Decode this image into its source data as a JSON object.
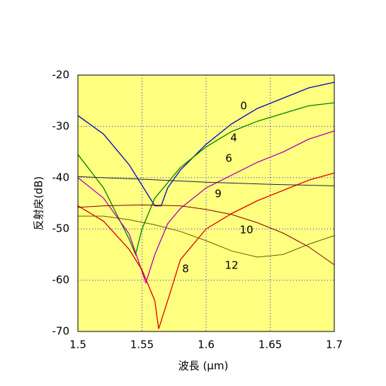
{
  "chart_data": {
    "type": "line",
    "xlabel": "波長 (μm)",
    "ylabel": "反射戻(dB)",
    "xlim": [
      1.5,
      1.7
    ],
    "ylim": [
      -70,
      -20
    ],
    "xticks": [
      1.5,
      1.55,
      1.6,
      1.65,
      1.7
    ],
    "yticks": [
      -70,
      -60,
      -50,
      -40,
      -30,
      -20
    ],
    "grid": true,
    "background": "#ffff80",
    "series": [
      {
        "name": "0",
        "color": "#0000c0",
        "x": [
          1.5,
          1.52,
          1.54,
          1.55,
          1.56,
          1.565,
          1.57,
          1.58,
          1.6,
          1.62,
          1.64,
          1.66,
          1.68,
          1.7
        ],
        "values": [
          -27.9,
          -31.5,
          -37.5,
          -41.5,
          -45.5,
          -45.5,
          -42,
          -38.5,
          -33.5,
          -29.5,
          -26.5,
          -24.5,
          -22.5,
          -21.4
        ]
      },
      {
        "name": "4",
        "color": "#008000",
        "x": [
          1.5,
          1.52,
          1.53,
          1.54,
          1.545,
          1.55,
          1.56,
          1.58,
          1.6,
          1.62,
          1.64,
          1.66,
          1.68,
          1.7
        ],
        "values": [
          -35.5,
          -42,
          -47,
          -52,
          -55,
          -50,
          -44,
          -38,
          -34,
          -31,
          -29,
          -27.5,
          -26,
          -25.4
        ]
      },
      {
        "name": "6",
        "color": "#b000c0",
        "x": [
          1.5,
          1.52,
          1.54,
          1.553,
          1.56,
          1.57,
          1.58,
          1.6,
          1.62,
          1.64,
          1.66,
          1.68,
          1.7
        ],
        "values": [
          -40,
          -44,
          -51,
          -60.5,
          -55,
          -49,
          -46,
          -42,
          -39.5,
          -37,
          -35,
          -32.5,
          -30.9
        ]
      },
      {
        "name": "8",
        "color": "#e00000",
        "x": [
          1.5,
          1.52,
          1.54,
          1.55,
          1.56,
          1.563,
          1.57,
          1.58,
          1.6,
          1.62,
          1.64,
          1.66,
          1.68,
          1.7
        ],
        "values": [
          -45.5,
          -48.5,
          -54,
          -58,
          -64,
          -69.5,
          -64,
          -56,
          -50,
          -47,
          -44.5,
          -42.5,
          -40.5,
          -39.1
        ]
      },
      {
        "name": "9",
        "color": "#202040",
        "x": [
          1.5,
          1.55,
          1.6,
          1.65,
          1.7
        ],
        "values": [
          -39.8,
          -40.3,
          -40.9,
          -41.3,
          -41.6
        ]
      },
      {
        "name": "10",
        "color": "#800000",
        "x": [
          1.5,
          1.52,
          1.55,
          1.58,
          1.6,
          1.62,
          1.64,
          1.66,
          1.68,
          1.7
        ],
        "values": [
          -45.8,
          -45.5,
          -45.3,
          -45.5,
          -46.2,
          -47.2,
          -48.8,
          -50.8,
          -53.5,
          -57
        ]
      },
      {
        "name": "12",
        "color": "#606000",
        "x": [
          1.5,
          1.52,
          1.54,
          1.56,
          1.58,
          1.6,
          1.62,
          1.64,
          1.66,
          1.68,
          1.7
        ],
        "values": [
          -47.5,
          -47.5,
          -48.2,
          -49.2,
          -50.5,
          -52.3,
          -54.3,
          -55.5,
          -55,
          -53,
          -51.3
        ]
      }
    ]
  }
}
